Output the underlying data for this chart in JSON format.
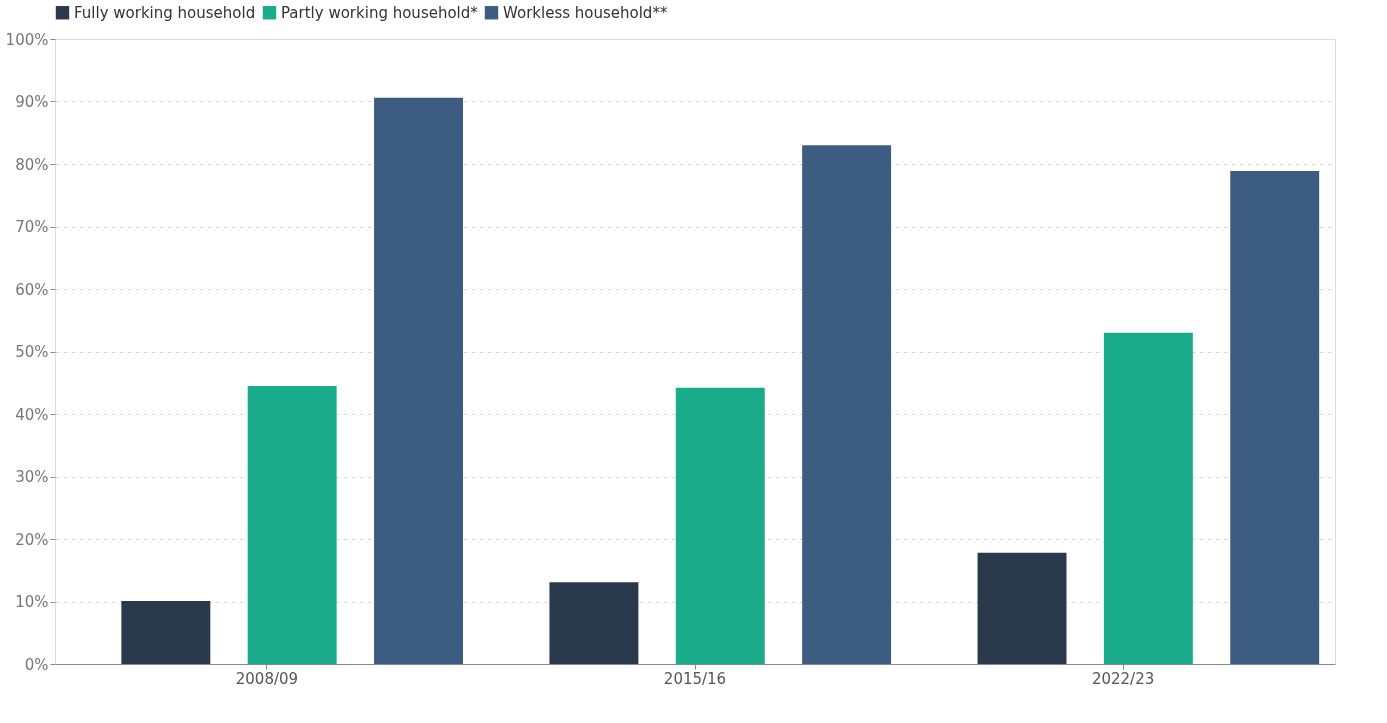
{
  "chart_data": {
    "type": "bar",
    "categories": [
      "2008/09",
      "2015/16",
      "2022/23"
    ],
    "series": [
      {
        "name": "Fully working household",
        "color": "#2a3a4c",
        "values": [
          10.1,
          13.1,
          17.8
        ]
      },
      {
        "name": "Partly working household*",
        "color": "#1aab8a",
        "values": [
          44.5,
          44.2,
          53.0
        ]
      },
      {
        "name": "Workless household**",
        "color": "#3d5c82",
        "values": [
          90.6,
          83.0,
          78.9
        ]
      }
    ],
    "ylim": [
      0,
      100
    ],
    "yticks": [
      {
        "value": 0,
        "label": "0%"
      },
      {
        "value": 10,
        "label": "10%"
      },
      {
        "value": 20,
        "label": "20%"
      },
      {
        "value": 30,
        "label": "30%"
      },
      {
        "value": 40,
        "label": "40%"
      },
      {
        "value": 50,
        "label": "50%"
      },
      {
        "value": 60,
        "label": "60%"
      },
      {
        "value": 70,
        "label": "70%"
      },
      {
        "value": 80,
        "label": "80%"
      },
      {
        "value": 90,
        "label": "90%"
      },
      {
        "value": 100,
        "label": "100%"
      }
    ],
    "grid": "y",
    "legend": "top left"
  }
}
